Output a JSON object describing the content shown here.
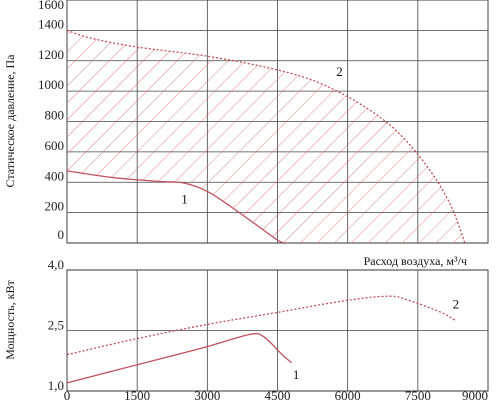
{
  "chart_data": [
    {
      "type": "line",
      "title": "",
      "ylabel": "Статическое давление, Па",
      "xlabel": "Расход воздуха, м³/ч",
      "xlim": [
        0,
        9000
      ],
      "ylim": [
        0,
        1600
      ],
      "grid": true,
      "y_ticks": [
        "0",
        "200",
        "400",
        "600",
        "800",
        "1000",
        "1200",
        "1400",
        "1600"
      ],
      "shaded_region": "between curve 1 and curve 2",
      "series": [
        {
          "name": "1",
          "style": "solid",
          "color": "#c0505a",
          "points": [
            [
              0,
              475
            ],
            [
              1000,
              430
            ],
            [
              2000,
              405
            ],
            [
              2500,
              395
            ],
            [
              3000,
              340
            ],
            [
              3500,
              240
            ],
            [
              4000,
              130
            ],
            [
              4500,
              20
            ],
            [
              4650,
              0
            ]
          ]
        },
        {
          "name": "2",
          "style": "dotted",
          "color": "#c0505a",
          "points": [
            [
              0,
              1400
            ],
            [
              500,
              1350
            ],
            [
              1500,
              1290
            ],
            [
              3000,
              1230
            ],
            [
              4500,
              1140
            ],
            [
              5500,
              1040
            ],
            [
              6500,
              870
            ],
            [
              7200,
              690
            ],
            [
              7800,
              460
            ],
            [
              8200,
              250
            ],
            [
              8450,
              50
            ],
            [
              8500,
              0
            ]
          ]
        }
      ]
    },
    {
      "type": "line",
      "title": "",
      "ylabel": "Мощность, кВт",
      "xlabel": "",
      "xlim": [
        0,
        9000
      ],
      "ylim": [
        1.0,
        4.0
      ],
      "grid": true,
      "x_ticks": [
        "0",
        "1500",
        "3000",
        "4500",
        "6000",
        "7500",
        "9000"
      ],
      "y_ticks": [
        "1,0",
        "2,5",
        "4,0"
      ],
      "series": [
        {
          "name": "1",
          "style": "solid",
          "color": "#c0505a",
          "points": [
            [
              0,
              1.2
            ],
            [
              1000,
              1.5
            ],
            [
              2000,
              1.8
            ],
            [
              3000,
              2.1
            ],
            [
              3900,
              2.4
            ],
            [
              4200,
              2.35
            ],
            [
              4600,
              1.9
            ],
            [
              4800,
              1.7
            ]
          ]
        },
        {
          "name": "2",
          "style": "dotted",
          "color": "#c0505a",
          "points": [
            [
              0,
              1.9
            ],
            [
              1500,
              2.3
            ],
            [
              3000,
              2.65
            ],
            [
              4500,
              2.95
            ],
            [
              6000,
              3.25
            ],
            [
              6900,
              3.35
            ],
            [
              7300,
              3.25
            ],
            [
              8000,
              2.95
            ],
            [
              8300,
              2.75
            ]
          ]
        }
      ]
    }
  ]
}
